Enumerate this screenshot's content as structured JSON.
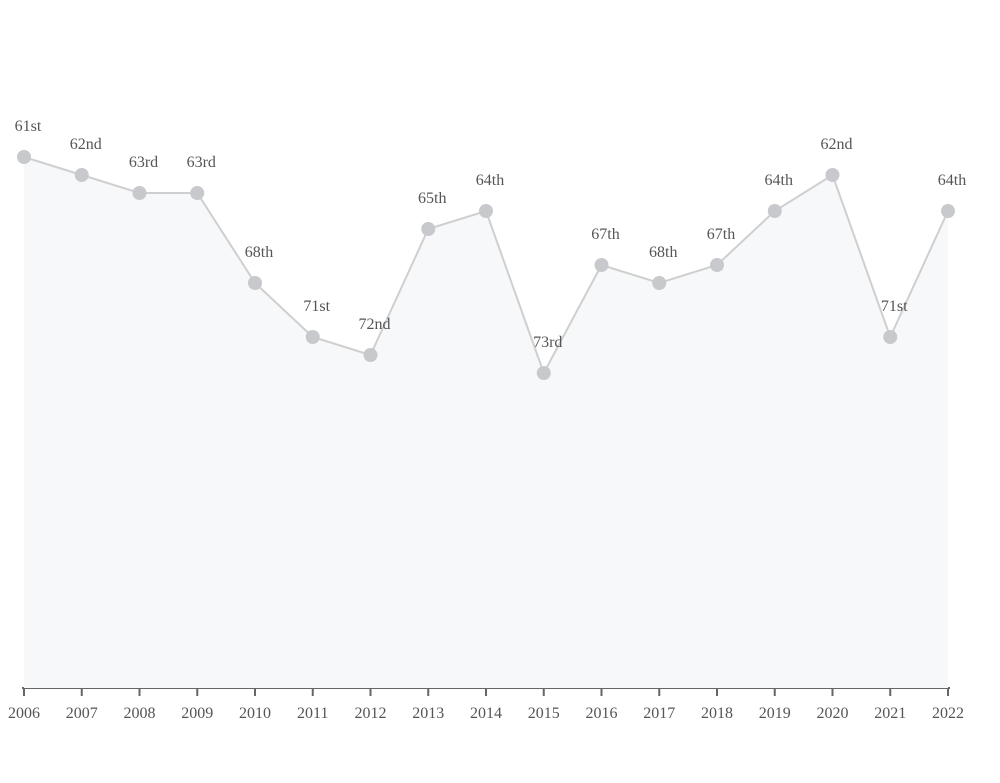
{
  "chart_data": {
    "type": "line",
    "categories": [
      "2006",
      "2007",
      "2008",
      "2009",
      "2010",
      "2011",
      "2012",
      "2013",
      "2014",
      "2015",
      "2016",
      "2017",
      "2018",
      "2019",
      "2020",
      "2021",
      "2022"
    ],
    "values": [
      61,
      62,
      63,
      63,
      68,
      71,
      72,
      65,
      64,
      73,
      67,
      68,
      67,
      64,
      62,
      71,
      64
    ],
    "value_labels": [
      "61st",
      "62nd",
      "63rd",
      "63rd",
      "68th",
      "71st",
      "72nd",
      "65th",
      "64th",
      "73rd",
      "67th",
      "68th",
      "67th",
      "64th",
      "62nd",
      "71st",
      "64th"
    ],
    "inverted": true,
    "color": "#c8c9cc",
    "line_color": "#cfcfcf",
    "area_color": "#f7f8f9"
  }
}
